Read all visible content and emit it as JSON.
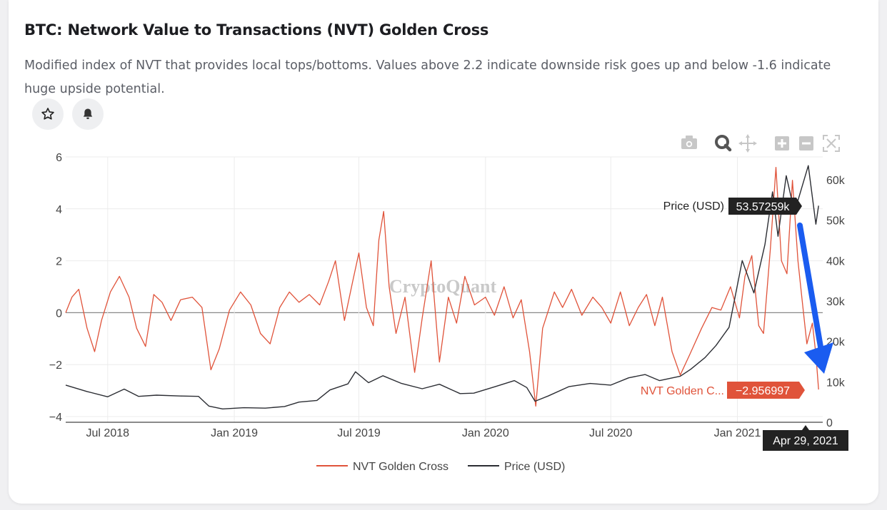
{
  "card": {
    "title": "BTC: Network Value to Transactions (NVT) Golden Cross",
    "description": "Modified index of NVT that provides local tops/bottoms. Values above 2.2 indicate downside risk goes up and below -1.6 indicate huge upside potential."
  },
  "actions": {
    "star_icon": "star-icon",
    "bell_icon": "bell-icon"
  },
  "toolbar": [
    "camera-icon",
    "zoom-icon",
    "pan-icon",
    "zoom-in-icon",
    "zoom-out-icon",
    "autoscale-icon"
  ],
  "hover": {
    "price_label": "Price (USD)",
    "price_value": "53.57259k",
    "nvt_label": "NVT Golden C...",
    "nvt_value": "−2.956997",
    "date": "Apr 29, 2021"
  },
  "watermark": "CryptoQuant",
  "colors": {
    "nvt": "#e0533a",
    "price": "#2b2d33",
    "arrow": "#1a5cf0",
    "zero_line": "#888888"
  },
  "chart_data": {
    "type": "line",
    "x_ticks": [
      "Jul 2018",
      "Jan 2019",
      "Jul 2019",
      "Jan 2020",
      "Jul 2020",
      "Jan 2021"
    ],
    "x_range": [
      "2018-05-01",
      "2021-05-05"
    ],
    "y_left": {
      "ticks": [
        "6",
        "4",
        "2",
        "0",
        "−2",
        "−4"
      ],
      "range": [
        -4,
        6
      ]
    },
    "y_right": {
      "ticks": [
        "60k",
        "50k",
        "40k",
        "30k",
        "20k",
        "10k",
        "0"
      ],
      "range": [
        0,
        66000
      ]
    },
    "grid": true,
    "legend_position": "bottom",
    "series": [
      {
        "name": "NVT Golden Cross",
        "axis": "left",
        "points": [
          [
            "2018-05-01",
            0.0
          ],
          [
            "2018-05-10",
            0.6
          ],
          [
            "2018-05-20",
            0.9
          ],
          [
            "2018-06-01",
            -0.6
          ],
          [
            "2018-06-12",
            -1.5
          ],
          [
            "2018-06-22",
            -0.3
          ],
          [
            "2018-07-05",
            0.8
          ],
          [
            "2018-07-18",
            1.4
          ],
          [
            "2018-08-01",
            0.6
          ],
          [
            "2018-08-12",
            -0.6
          ],
          [
            "2018-08-25",
            -1.3
          ],
          [
            "2018-09-06",
            0.7
          ],
          [
            "2018-09-18",
            0.4
          ],
          [
            "2018-10-01",
            -0.3
          ],
          [
            "2018-10-15",
            0.5
          ],
          [
            "2018-11-01",
            0.6
          ],
          [
            "2018-11-15",
            0.2
          ],
          [
            "2018-11-28",
            -2.2
          ],
          [
            "2018-12-10",
            -1.4
          ],
          [
            "2018-12-25",
            0.1
          ],
          [
            "2019-01-10",
            0.8
          ],
          [
            "2019-01-25",
            0.3
          ],
          [
            "2019-02-08",
            -0.8
          ],
          [
            "2019-02-22",
            -1.2
          ],
          [
            "2019-03-08",
            0.2
          ],
          [
            "2019-03-22",
            0.8
          ],
          [
            "2019-04-05",
            0.4
          ],
          [
            "2019-04-20",
            0.7
          ],
          [
            "2019-05-05",
            0.3
          ],
          [
            "2019-05-18",
            1.2
          ],
          [
            "2019-05-28",
            2.0
          ],
          [
            "2019-06-10",
            -0.3
          ],
          [
            "2019-06-22",
            1.2
          ],
          [
            "2019-07-01",
            2.3
          ],
          [
            "2019-07-12",
            0.2
          ],
          [
            "2019-07-22",
            -0.5
          ],
          [
            "2019-07-30",
            2.8
          ],
          [
            "2019-08-06",
            3.9
          ],
          [
            "2019-08-14",
            1.0
          ],
          [
            "2019-08-24",
            -0.8
          ],
          [
            "2019-09-06",
            0.6
          ],
          [
            "2019-09-20",
            -2.3
          ],
          [
            "2019-10-01",
            -0.2
          ],
          [
            "2019-10-14",
            2.0
          ],
          [
            "2019-10-26",
            -1.9
          ],
          [
            "2019-11-08",
            0.6
          ],
          [
            "2019-11-20",
            -0.4
          ],
          [
            "2019-12-02",
            1.4
          ],
          [
            "2019-12-16",
            0.3
          ],
          [
            "2020-01-01",
            0.6
          ],
          [
            "2020-01-14",
            -0.1
          ],
          [
            "2020-01-28",
            1.0
          ],
          [
            "2020-02-10",
            -0.2
          ],
          [
            "2020-02-22",
            0.5
          ],
          [
            "2020-03-05",
            -1.5
          ],
          [
            "2020-03-14",
            -3.6
          ],
          [
            "2020-03-24",
            -0.6
          ],
          [
            "2020-04-10",
            0.8
          ],
          [
            "2020-04-22",
            0.2
          ],
          [
            "2020-05-05",
            0.9
          ],
          [
            "2020-05-20",
            -0.1
          ],
          [
            "2020-06-05",
            0.6
          ],
          [
            "2020-06-18",
            0.2
          ],
          [
            "2020-07-01",
            -0.4
          ],
          [
            "2020-07-15",
            0.8
          ],
          [
            "2020-07-28",
            -0.5
          ],
          [
            "2020-08-10",
            0.2
          ],
          [
            "2020-08-22",
            0.7
          ],
          [
            "2020-09-03",
            -0.5
          ],
          [
            "2020-09-14",
            0.6
          ],
          [
            "2020-09-28",
            -1.5
          ],
          [
            "2020-10-10",
            -2.4
          ],
          [
            "2020-10-24",
            -1.6
          ],
          [
            "2020-11-10",
            -0.6
          ],
          [
            "2020-11-25",
            0.2
          ],
          [
            "2020-12-08",
            0.1
          ],
          [
            "2020-12-22",
            1.0
          ],
          [
            "2021-01-04",
            -0.2
          ],
          [
            "2021-01-12",
            1.4
          ],
          [
            "2021-01-22",
            2.2
          ],
          [
            "2021-02-01",
            -0.5
          ],
          [
            "2021-02-08",
            -0.8
          ],
          [
            "2021-02-18",
            2.5
          ],
          [
            "2021-02-26",
            5.6
          ],
          [
            "2021-03-06",
            2.0
          ],
          [
            "2021-03-14",
            1.5
          ],
          [
            "2021-03-22",
            5.1
          ],
          [
            "2021-03-30",
            2.0
          ],
          [
            "2021-04-05",
            0.5
          ],
          [
            "2021-04-12",
            -1.2
          ],
          [
            "2021-04-20",
            -0.4
          ],
          [
            "2021-04-25",
            -1.6
          ],
          [
            "2021-04-29",
            -2.96
          ]
        ]
      },
      {
        "name": "Price (USD)",
        "axis": "right",
        "points": [
          [
            "2018-05-01",
            9200
          ],
          [
            "2018-06-01",
            7600
          ],
          [
            "2018-07-01",
            6300
          ],
          [
            "2018-07-25",
            8200
          ],
          [
            "2018-08-15",
            6400
          ],
          [
            "2018-09-10",
            6700
          ],
          [
            "2018-10-15",
            6500
          ],
          [
            "2018-11-10",
            6400
          ],
          [
            "2018-11-25",
            4000
          ],
          [
            "2018-12-15",
            3300
          ],
          [
            "2019-01-15",
            3600
          ],
          [
            "2019-02-15",
            3500
          ],
          [
            "2019-03-15",
            3900
          ],
          [
            "2019-04-05",
            5000
          ],
          [
            "2019-05-01",
            5400
          ],
          [
            "2019-05-20",
            8000
          ],
          [
            "2019-06-15",
            9500
          ],
          [
            "2019-06-26",
            12500
          ],
          [
            "2019-07-15",
            9800
          ],
          [
            "2019-08-05",
            11500
          ],
          [
            "2019-09-01",
            9600
          ],
          [
            "2019-10-01",
            8300
          ],
          [
            "2019-10-26",
            9400
          ],
          [
            "2019-11-25",
            7100
          ],
          [
            "2019-12-15",
            7200
          ],
          [
            "2020-01-15",
            8800
          ],
          [
            "2020-02-12",
            10300
          ],
          [
            "2020-03-01",
            8600
          ],
          [
            "2020-03-13",
            5200
          ],
          [
            "2020-04-01",
            6500
          ],
          [
            "2020-05-01",
            8800
          ],
          [
            "2020-06-01",
            9600
          ],
          [
            "2020-07-01",
            9200
          ],
          [
            "2020-07-27",
            11000
          ],
          [
            "2020-08-20",
            11800
          ],
          [
            "2020-09-10",
            10300
          ],
          [
            "2020-10-10",
            11400
          ],
          [
            "2020-10-25",
            13100
          ],
          [
            "2020-11-15",
            16000
          ],
          [
            "2020-12-01",
            19000
          ],
          [
            "2020-12-20",
            23500
          ],
          [
            "2021-01-08",
            40000
          ],
          [
            "2021-01-25",
            32000
          ],
          [
            "2021-02-10",
            44000
          ],
          [
            "2021-02-21",
            57000
          ],
          [
            "2021-03-01",
            46000
          ],
          [
            "2021-03-13",
            61000
          ],
          [
            "2021-03-25",
            52000
          ],
          [
            "2021-04-14",
            63500
          ],
          [
            "2021-04-25",
            49000
          ],
          [
            "2021-04-29",
            53573
          ]
        ]
      }
    ]
  }
}
